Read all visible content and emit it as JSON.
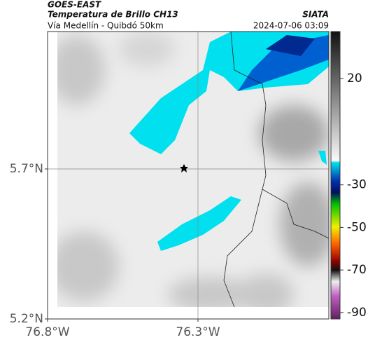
{
  "header": {
    "satellite": "GOES-EAST",
    "product": "Temperatura de Brillo CH13",
    "route": "Vía Medellín - Quibdó 50km",
    "source": "SIATA",
    "timestamp": "2024-07-06 03:09"
  },
  "map": {
    "xlim": [
      -76.8,
      -75.865
    ],
    "ylim": [
      5.2,
      6.158
    ],
    "xticks": [
      {
        "value": -76.8,
        "label": "76.8°W"
      },
      {
        "value": -76.3,
        "label": "76.3°W"
      }
    ],
    "yticks": [
      {
        "value": 5.7,
        "label": "5.7°N"
      },
      {
        "value": 5.2,
        "label": "5.2°N"
      }
    ],
    "grid": true
  },
  "colorbar": {
    "lim": [
      -93,
      42
    ],
    "ticks": [
      20,
      -30,
      -50,
      -70,
      -90
    ]
  }
}
